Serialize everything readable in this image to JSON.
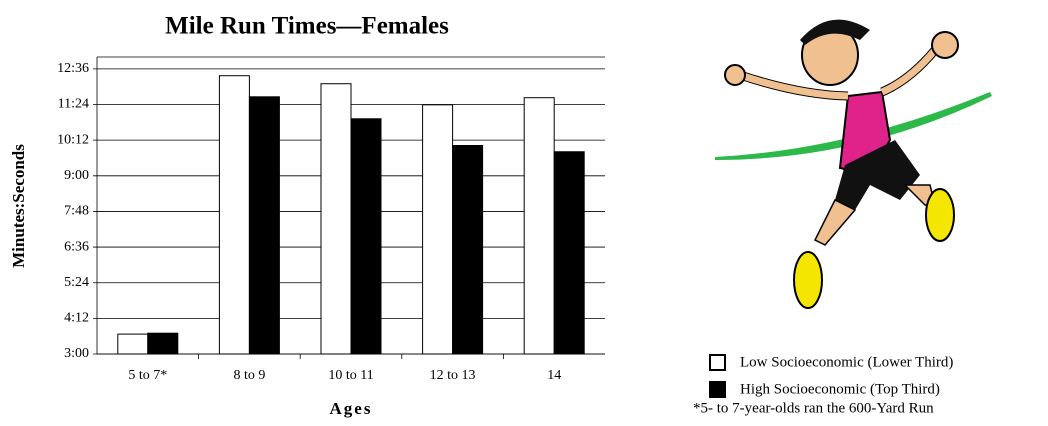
{
  "chart_data": {
    "type": "bar",
    "title": "Mile Run Times—Females",
    "y_label": "Minutes:Seconds",
    "x_label": "Ages",
    "categories": [
      "5 to 7*",
      "8 to 9",
      "10 to 11",
      "12 to 13",
      "14"
    ],
    "series": [
      {
        "name": "Low Socioeconomic (Lower Third)",
        "color": "#ffffff",
        "values": [
          3.67,
          12.37,
          12.1,
          11.39,
          11.63
        ]
      },
      {
        "name": "High Socioeconomic (Top Third)",
        "color": "#000000",
        "values": [
          3.7,
          11.66,
          10.92,
          10.02,
          9.81
        ]
      }
    ],
    "ylim": [
      3,
      13
    ],
    "yticks": [
      {
        "value": 3,
        "label": "3:00"
      },
      {
        "value": 4.2,
        "label": "4:12"
      },
      {
        "value": 5.4,
        "label": "5:24"
      },
      {
        "value": 6.6,
        "label": "6:36"
      },
      {
        "value": 7.8,
        "label": "7:48"
      },
      {
        "value": 9,
        "label": "9:00"
      },
      {
        "value": 10.2,
        "label": "10:12"
      },
      {
        "value": 11.4,
        "label": "11:24"
      },
      {
        "value": 12.6,
        "label": "12:36"
      }
    ],
    "grid": true,
    "note": "*5- to 7-year-olds ran the 600-Yard Run"
  }
}
